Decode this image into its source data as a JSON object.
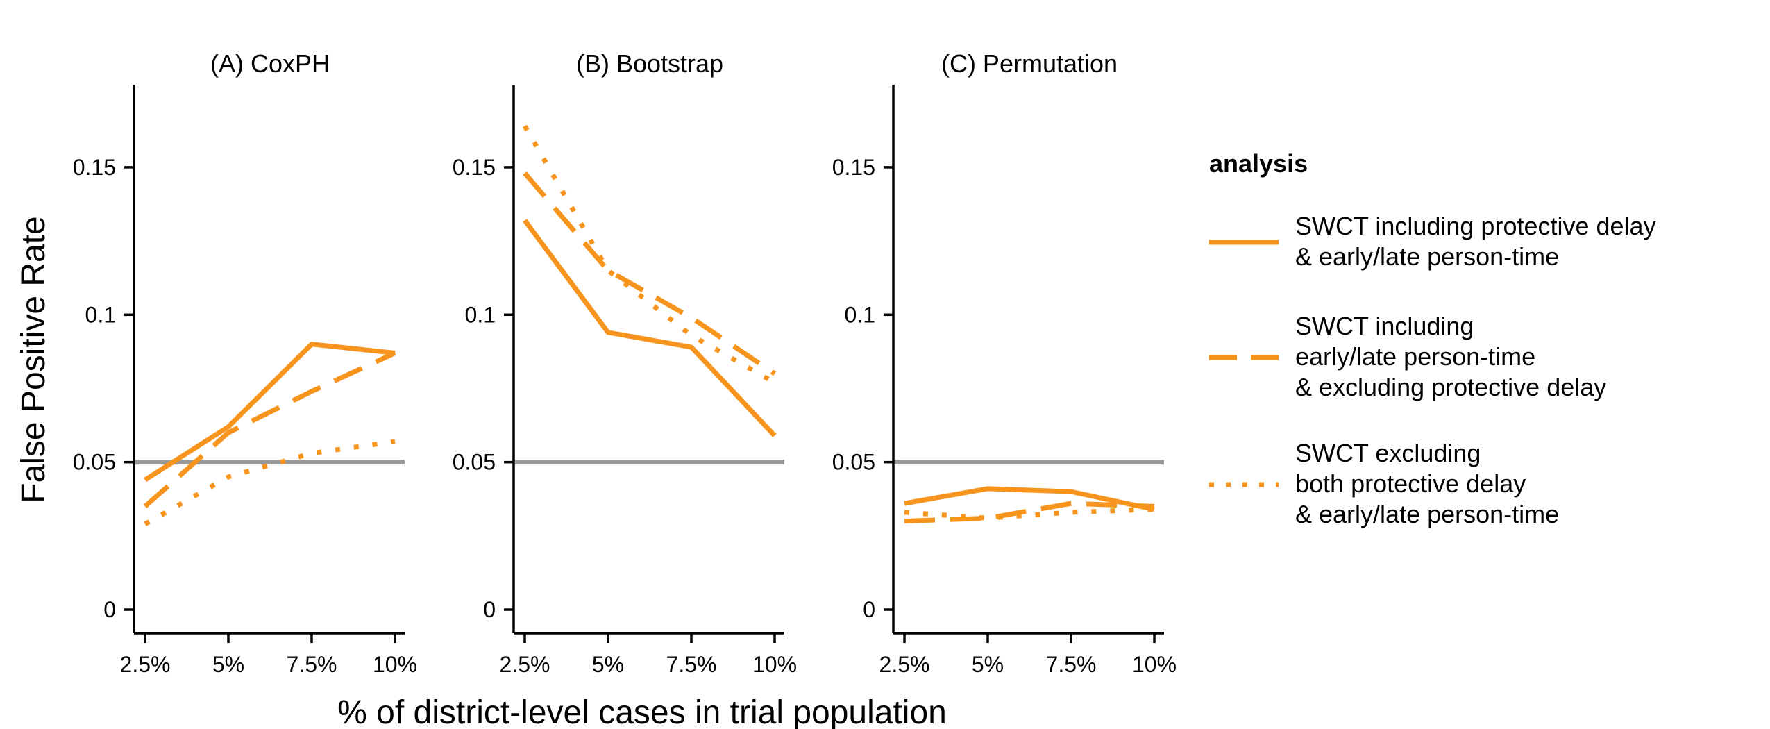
{
  "chart_data": {
    "type": "line",
    "xlabel": "% of district-level cases in trial population",
    "ylabel": "False Positive Rate",
    "categories": [
      "2.5%",
      "5%",
      "7.5%",
      "10%"
    ],
    "y_ticks": [
      {
        "value": 0,
        "label": "0"
      },
      {
        "value": 0.05,
        "label": "0.05"
      },
      {
        "value": 0.1,
        "label": "0.1"
      },
      {
        "value": 0.15,
        "label": "0.15"
      }
    ],
    "ylim": [
      -0.008,
      0.178
    ],
    "reference_line": {
      "value": 0.05,
      "color": "#999999"
    },
    "series_color": "#F7941D",
    "legend": {
      "title": "analysis",
      "placement": "right",
      "entries": [
        {
          "key": "solid",
          "dash": "solid",
          "lines": [
            "SWCT including protective delay",
            "& early/late person-time"
          ]
        },
        {
          "key": "dashed",
          "dash": "dashed",
          "lines": [
            "SWCT including",
            "early/late person-time",
            "& excluding protective delay"
          ]
        },
        {
          "key": "dotted",
          "dash": "dotted",
          "lines": [
            "SWCT excluding",
            "both protective delay",
            "& early/late person-time"
          ]
        }
      ]
    },
    "panels": [
      {
        "title": "(A) CoxPH",
        "series": [
          {
            "key": "solid",
            "values": [
              0.044,
              0.062,
              0.09,
              0.087
            ]
          },
          {
            "key": "dashed",
            "values": [
              0.035,
              0.06,
              0.074,
              0.087
            ]
          },
          {
            "key": "dotted",
            "values": [
              0.029,
              0.045,
              0.053,
              0.057
            ]
          }
        ]
      },
      {
        "title": "(B) Bootstrap",
        "series": [
          {
            "key": "solid",
            "values": [
              0.132,
              0.094,
              0.089,
              0.059
            ]
          },
          {
            "key": "dashed",
            "values": [
              0.148,
              0.115,
              0.099,
              0.08
            ]
          },
          {
            "key": "dotted",
            "values": [
              0.164,
              0.115,
              0.093,
              0.077
            ]
          }
        ]
      },
      {
        "title": "(C) Permutation",
        "series": [
          {
            "key": "solid",
            "values": [
              0.036,
              0.041,
              0.04,
              0.034
            ]
          },
          {
            "key": "dashed",
            "values": [
              0.03,
              0.031,
              0.036,
              0.035
            ]
          },
          {
            "key": "dotted",
            "values": [
              0.033,
              0.031,
              0.033,
              0.034
            ]
          }
        ]
      }
    ]
  }
}
